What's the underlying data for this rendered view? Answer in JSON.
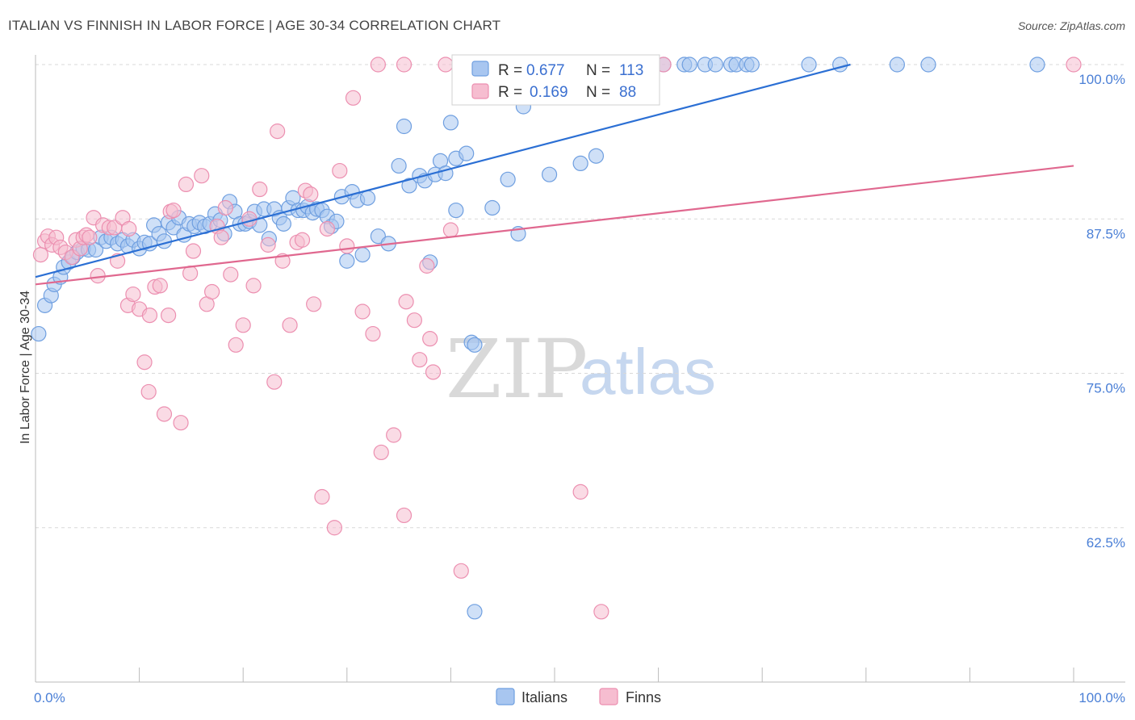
{
  "header": {
    "title": "ITALIAN VS FINNISH IN LABOR FORCE | AGE 30-34 CORRELATION CHART",
    "source": "Source: ZipAtlas.com"
  },
  "watermark": {
    "zip": "ZIP",
    "atlas": "atlas"
  },
  "legend": {
    "r_label": "R =",
    "n_label": "N =",
    "series": [
      {
        "name": "Italians",
        "r": "0.677",
        "n": "113"
      },
      {
        "name": "Finns",
        "r": "0.169",
        "n": "88"
      }
    ]
  },
  "colors": {
    "italians_fill": "#a8c6f0",
    "italians_stroke": "#6f9fe0",
    "italians_line": "#2b6fd4",
    "finns_fill": "#f6bdd0",
    "finns_stroke": "#ec8fb0",
    "finns_line": "#e0688f",
    "grid": "#d8d8d8",
    "tick_label": "#4a7fd6"
  },
  "chart_data": {
    "type": "scatter",
    "title": "ITALIAN VS FINNISH IN LABOR FORCE | AGE 30-34 CORRELATION CHART",
    "xlabel": "",
    "ylabel": "In Labor Force | Age 30-34",
    "xlim": [
      0,
      100
    ],
    "ylim": [
      50,
      100
    ],
    "x_tick_labels": [
      "0.0%",
      "100.0%"
    ],
    "y_ticks": [
      62.5,
      75.0,
      87.5,
      100.0
    ],
    "y_tick_labels": [
      "62.5%",
      "75.0%",
      "87.5%",
      "100.0%"
    ],
    "grid": true,
    "legend_position": "top-center",
    "series": [
      {
        "name": "Italians",
        "r": 0.677,
        "n": 113,
        "trend": {
          "x0": 0,
          "y0": 82.8,
          "x1": 78.5,
          "y1": 100
        },
        "points": [
          [
            0.3,
            78.2
          ],
          [
            0.9,
            80.5
          ],
          [
            1.5,
            81.3
          ],
          [
            1.8,
            82.2
          ],
          [
            2.4,
            82.8
          ],
          [
            2.7,
            83.6
          ],
          [
            3.2,
            84.0
          ],
          [
            3.6,
            84.4
          ],
          [
            4.0,
            84.8
          ],
          [
            4.6,
            85.1
          ],
          [
            5.1,
            85.0
          ],
          [
            5.8,
            85.0
          ],
          [
            6.3,
            86.0
          ],
          [
            6.8,
            85.7
          ],
          [
            7.3,
            86.0
          ],
          [
            7.9,
            85.5
          ],
          [
            8.4,
            85.8
          ],
          [
            8.9,
            85.3
          ],
          [
            9.4,
            85.8
          ],
          [
            10.0,
            85.1
          ],
          [
            10.5,
            85.6
          ],
          [
            11.0,
            85.5
          ],
          [
            11.4,
            87.0
          ],
          [
            11.9,
            86.3
          ],
          [
            12.4,
            85.7
          ],
          [
            12.8,
            87.2
          ],
          [
            13.3,
            86.8
          ],
          [
            13.8,
            87.6
          ],
          [
            14.3,
            86.2
          ],
          [
            14.8,
            87.1
          ],
          [
            15.3,
            86.9
          ],
          [
            15.8,
            87.2
          ],
          [
            16.3,
            86.9
          ],
          [
            16.8,
            87.1
          ],
          [
            17.3,
            87.9
          ],
          [
            17.8,
            87.4
          ],
          [
            18.2,
            86.3
          ],
          [
            18.7,
            88.9
          ],
          [
            19.2,
            88.1
          ],
          [
            19.7,
            87.1
          ],
          [
            20.2,
            87.1
          ],
          [
            20.6,
            87.3
          ],
          [
            21.1,
            88.1
          ],
          [
            21.6,
            87.0
          ],
          [
            22.0,
            88.3
          ],
          [
            22.5,
            85.9
          ],
          [
            23.0,
            88.3
          ],
          [
            23.5,
            87.6
          ],
          [
            23.9,
            87.1
          ],
          [
            24.4,
            88.4
          ],
          [
            24.8,
            89.2
          ],
          [
            25.3,
            88.2
          ],
          [
            25.8,
            88.2
          ],
          [
            26.2,
            88.5
          ],
          [
            26.7,
            88.0
          ],
          [
            27.1,
            88.3
          ],
          [
            27.6,
            88.2
          ],
          [
            28.1,
            87.7
          ],
          [
            28.5,
            86.9
          ],
          [
            29.0,
            87.3
          ],
          [
            29.5,
            89.3
          ],
          [
            30.0,
            84.1
          ],
          [
            30.5,
            89.7
          ],
          [
            31.0,
            89.0
          ],
          [
            31.5,
            84.6
          ],
          [
            32.0,
            89.2
          ],
          [
            33.0,
            86.1
          ],
          [
            34.0,
            85.5
          ],
          [
            35.0,
            91.8
          ],
          [
            35.5,
            95.0
          ],
          [
            36.0,
            90.2
          ],
          [
            37.0,
            91.0
          ],
          [
            37.5,
            90.6
          ],
          [
            38.0,
            84.0
          ],
          [
            38.5,
            91.1
          ],
          [
            39.0,
            92.2
          ],
          [
            39.5,
            91.2
          ],
          [
            40.0,
            95.3
          ],
          [
            40.5,
            92.4
          ],
          [
            40.5,
            88.2
          ],
          [
            41.5,
            92.8
          ],
          [
            41.8,
            100
          ],
          [
            42.0,
            77.5
          ],
          [
            42.3,
            77.3
          ],
          [
            42.3,
            55.7
          ],
          [
            44.0,
            88.4
          ],
          [
            44.5,
            100
          ],
          [
            45.5,
            90.7
          ],
          [
            46.5,
            86.3
          ],
          [
            46.5,
            100
          ],
          [
            47.0,
            96.6
          ],
          [
            48.5,
            100
          ],
          [
            49.5,
            91.1
          ],
          [
            50.5,
            100
          ],
          [
            52.5,
            92.0
          ],
          [
            54.0,
            92.6
          ],
          [
            54.5,
            100
          ],
          [
            55.5,
            100
          ],
          [
            57.0,
            100
          ],
          [
            60.5,
            100
          ],
          [
            62.5,
            100
          ],
          [
            63.0,
            100
          ],
          [
            64.5,
            100
          ],
          [
            65.5,
            100
          ],
          [
            67.0,
            100
          ],
          [
            67.5,
            100
          ],
          [
            68.5,
            100
          ],
          [
            69.0,
            100
          ],
          [
            74.5,
            100
          ],
          [
            77.5,
            100
          ],
          [
            83.0,
            100
          ],
          [
            86.0,
            100
          ],
          [
            96.5,
            100
          ]
        ]
      },
      {
        "name": "Finns",
        "r": 0.169,
        "n": 88,
        "trend": {
          "x0": 0,
          "y0": 82.2,
          "x1": 100,
          "y1": 91.8
        },
        "points": [
          [
            0.5,
            84.6
          ],
          [
            0.9,
            85.7
          ],
          [
            1.2,
            86.1
          ],
          [
            1.6,
            85.4
          ],
          [
            2.0,
            86.0
          ],
          [
            2.4,
            85.2
          ],
          [
            2.9,
            84.8
          ],
          [
            3.5,
            84.4
          ],
          [
            3.9,
            85.8
          ],
          [
            4.3,
            85.1
          ],
          [
            4.6,
            86.0
          ],
          [
            4.9,
            86.2
          ],
          [
            5.2,
            86.0
          ],
          [
            5.6,
            87.6
          ],
          [
            6.0,
            82.9
          ],
          [
            6.5,
            87.0
          ],
          [
            7.1,
            86.8
          ],
          [
            7.6,
            86.8
          ],
          [
            7.9,
            84.1
          ],
          [
            8.4,
            87.6
          ],
          [
            8.9,
            80.5
          ],
          [
            9.0,
            86.7
          ],
          [
            9.4,
            81.4
          ],
          [
            10.0,
            80.2
          ],
          [
            10.5,
            75.9
          ],
          [
            10.9,
            73.5
          ],
          [
            11.0,
            79.7
          ],
          [
            11.5,
            82.0
          ],
          [
            12.0,
            82.1
          ],
          [
            12.4,
            71.7
          ],
          [
            12.8,
            79.7
          ],
          [
            13.0,
            88.1
          ],
          [
            13.3,
            88.2
          ],
          [
            14.0,
            71.0
          ],
          [
            14.5,
            90.3
          ],
          [
            14.9,
            83.1
          ],
          [
            15.2,
            84.9
          ],
          [
            16.0,
            91.0
          ],
          [
            16.5,
            80.6
          ],
          [
            17.0,
            81.6
          ],
          [
            17.5,
            86.9
          ],
          [
            17.9,
            86.0
          ],
          [
            18.3,
            88.4
          ],
          [
            18.8,
            83.0
          ],
          [
            19.3,
            77.3
          ],
          [
            20.0,
            78.9
          ],
          [
            20.6,
            87.5
          ],
          [
            21.0,
            82.1
          ],
          [
            21.6,
            89.9
          ],
          [
            22.4,
            85.4
          ],
          [
            23.0,
            74.3
          ],
          [
            23.3,
            94.6
          ],
          [
            23.8,
            84.1
          ],
          [
            24.5,
            78.9
          ],
          [
            25.2,
            85.6
          ],
          [
            25.7,
            85.8
          ],
          [
            26.0,
            89.8
          ],
          [
            26.5,
            89.5
          ],
          [
            26.8,
            80.6
          ],
          [
            27.6,
            65.0
          ],
          [
            28.1,
            86.7
          ],
          [
            28.8,
            62.5
          ],
          [
            29.3,
            91.4
          ],
          [
            30.0,
            85.3
          ],
          [
            30.6,
            97.3
          ],
          [
            31.5,
            80.0
          ],
          [
            32.5,
            78.2
          ],
          [
            33.0,
            100
          ],
          [
            33.3,
            68.6
          ],
          [
            34.5,
            70.0
          ],
          [
            35.5,
            100
          ],
          [
            35.5,
            63.5
          ],
          [
            35.7,
            80.8
          ],
          [
            36.5,
            79.3
          ],
          [
            37.0,
            76.1
          ],
          [
            37.7,
            83.7
          ],
          [
            38.0,
            77.8
          ],
          [
            38.3,
            75.1
          ],
          [
            39.5,
            100
          ],
          [
            40.0,
            86.6
          ],
          [
            41.0,
            59.0
          ],
          [
            44.0,
            100
          ],
          [
            49.5,
            100
          ],
          [
            52.5,
            65.4
          ],
          [
            54.5,
            55.7
          ],
          [
            56.0,
            100
          ],
          [
            60.5,
            100
          ],
          [
            100.0,
            100
          ]
        ]
      }
    ]
  }
}
